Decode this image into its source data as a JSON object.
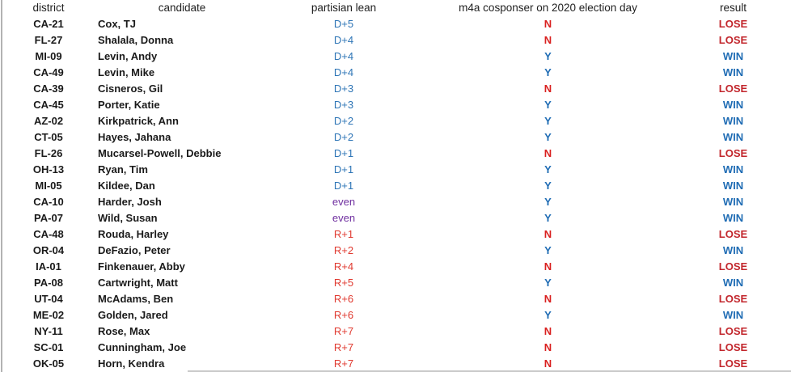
{
  "chart_data": {
    "type": "table",
    "columns": [
      "district",
      "candidate",
      "partisian lean",
      "m4a cosponser on 2020 election day",
      "result"
    ],
    "rows": [
      {
        "district": "CA-21",
        "candidate": "Cox, TJ",
        "lean": "D+5",
        "m4a": "N",
        "result": "LOSE"
      },
      {
        "district": "FL-27",
        "candidate": "Shalala, Donna",
        "lean": "D+4",
        "m4a": "N",
        "result": "LOSE"
      },
      {
        "district": "MI-09",
        "candidate": "Levin, Andy",
        "lean": "D+4",
        "m4a": "Y",
        "result": "WIN"
      },
      {
        "district": "CA-49",
        "candidate": "Levin, Mike",
        "lean": "D+4",
        "m4a": "Y",
        "result": "WIN"
      },
      {
        "district": "CA-39",
        "candidate": "Cisneros, Gil",
        "lean": "D+3",
        "m4a": "N",
        "result": "LOSE"
      },
      {
        "district": "CA-45",
        "candidate": "Porter, Katie",
        "lean": "D+3",
        "m4a": "Y",
        "result": "WIN"
      },
      {
        "district": "AZ-02",
        "candidate": "Kirkpatrick, Ann",
        "lean": "D+2",
        "m4a": "Y",
        "result": "WIN"
      },
      {
        "district": "CT-05",
        "candidate": "Hayes, Jahana",
        "lean": "D+2",
        "m4a": "Y",
        "result": "WIN"
      },
      {
        "district": "FL-26",
        "candidate": "Mucarsel-Powell, Debbie",
        "lean": "D+1",
        "m4a": "N",
        "result": "LOSE"
      },
      {
        "district": "OH-13",
        "candidate": "Ryan, Tim",
        "lean": "D+1",
        "m4a": "Y",
        "result": "WIN"
      },
      {
        "district": "MI-05",
        "candidate": "Kildee, Dan",
        "lean": "D+1",
        "m4a": "Y",
        "result": "WIN"
      },
      {
        "district": "CA-10",
        "candidate": "Harder, Josh",
        "lean": "even",
        "m4a": "Y",
        "result": "WIN"
      },
      {
        "district": "PA-07",
        "candidate": "Wild, Susan",
        "lean": "even",
        "m4a": "Y",
        "result": "WIN"
      },
      {
        "district": "CA-48",
        "candidate": "Rouda, Harley",
        "lean": "R+1",
        "m4a": "N",
        "result": "LOSE"
      },
      {
        "district": "OR-04",
        "candidate": "DeFazio, Peter",
        "lean": "R+2",
        "m4a": "Y",
        "result": "WIN"
      },
      {
        "district": "IA-01",
        "candidate": "Finkenauer, Abby",
        "lean": "R+4",
        "m4a": "N",
        "result": "LOSE"
      },
      {
        "district": "PA-08",
        "candidate": "Cartwright, Matt",
        "lean": "R+5",
        "m4a": "Y",
        "result": "WIN"
      },
      {
        "district": "UT-04",
        "candidate": "McAdams, Ben",
        "lean": "R+6",
        "m4a": "N",
        "result": "LOSE"
      },
      {
        "district": "ME-02",
        "candidate": "Golden, Jared",
        "lean": "R+6",
        "m4a": "Y",
        "result": "WIN"
      },
      {
        "district": "NY-11",
        "candidate": "Rose, Max",
        "lean": "R+7",
        "m4a": "N",
        "result": "LOSE"
      },
      {
        "district": "SC-01",
        "candidate": "Cunningham, Joe",
        "lean": "R+7",
        "m4a": "N",
        "result": "LOSE"
      },
      {
        "district": "OK-05",
        "candidate": "Horn, Kendra",
        "lean": "R+7",
        "m4a": "N",
        "result": "LOSE"
      }
    ],
    "layout": {
      "grid": "off",
      "header_position": "top"
    }
  },
  "colors": {
    "dem_blue": "#2e75b6",
    "rep_red": "#e03a30",
    "even_purple": "#7030a0",
    "yes_blue": "#1f6cb4",
    "no_red": "#d9201f",
    "win_blue": "#1f6cb4",
    "lose_red": "#c2262c",
    "text": "#1a1a1a"
  }
}
